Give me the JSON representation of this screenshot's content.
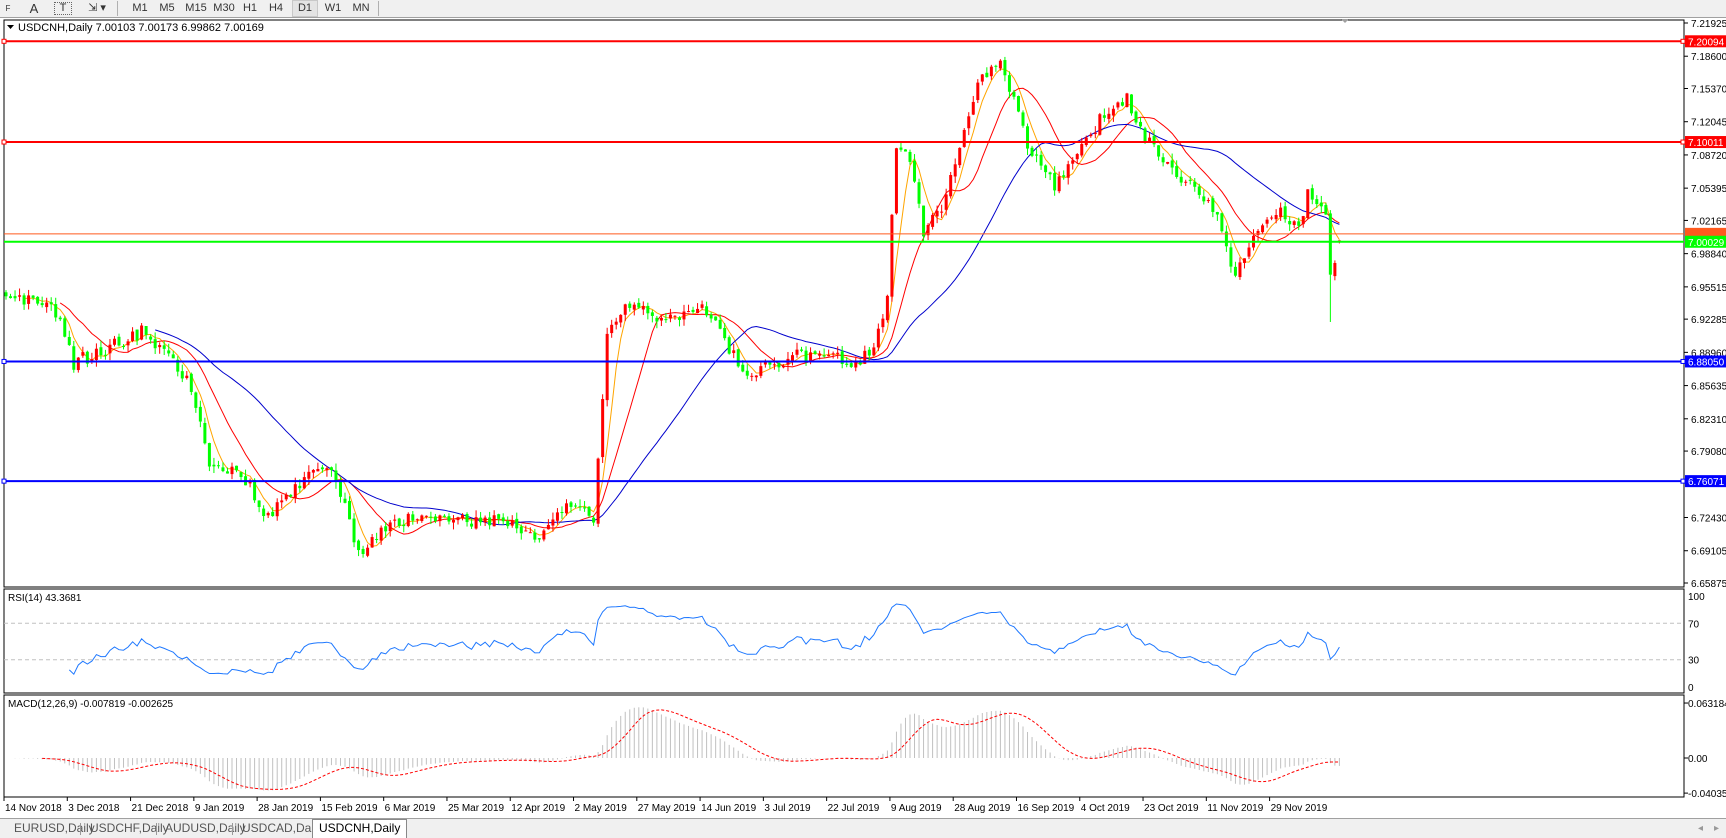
{
  "toolbar": {
    "tools": [
      {
        "label": "F",
        "icon": "period-separator-icon"
      },
      {
        "label": "A",
        "icon": "text-tool-icon"
      },
      {
        "label": "T",
        "icon": "text-label-icon"
      },
      {
        "label": "▾",
        "icon": "arrows-dropdown-icon"
      }
    ],
    "timeframes": [
      "M1",
      "M5",
      "M15",
      "M30",
      "H1",
      "H4",
      "D1",
      "W1",
      "MN"
    ],
    "active_timeframe": "D1"
  },
  "chart": {
    "title": "USDCNH,Daily  7.00103 7.00173 6.99862 7.00169",
    "last_ohlc": {
      "open": 7.00103,
      "high": 7.00173,
      "low": 6.99862,
      "close": 7.00169
    },
    "price_axis_ticks": [
      "7.21925",
      "7.18600",
      "7.15370",
      "7.12045",
      "7.08720",
      "7.05395",
      "7.02165",
      "6.98840",
      "6.95515",
      "6.92285",
      "6.88960",
      "6.85635",
      "6.82310",
      "6.79080",
      "6.72430",
      "6.69105",
      "6.65875"
    ],
    "hlines": [
      {
        "label": "7.20094",
        "value": 7.20094,
        "color": "#ff0000"
      },
      {
        "label": "7.10011",
        "value": 7.10011,
        "color": "#ff0000"
      },
      {
        "label": "6.88050",
        "value": 6.8805,
        "color": "#0000ff"
      },
      {
        "label": "6.76071",
        "value": 6.76071,
        "color": "#0000ff"
      }
    ],
    "ask_line": {
      "value": 7.0082,
      "color": "#ff5a1e"
    },
    "bid_line": {
      "label": "7.00029",
      "value": 7.00029,
      "color": "#00ff00"
    },
    "colors": {
      "bull": "#ff0000",
      "bear": "#00ff00",
      "ma_fast": "#ffa500",
      "ma_mid": "#ff0000",
      "ma_slow": "#0000cc"
    },
    "date_labels": [
      "14 Nov 2018",
      "3 Dec 2018",
      "21 Dec 2018",
      "9 Jan 2019",
      "28 Jan 2019",
      "15 Feb 2019",
      "6 Mar 2019",
      "25 Mar 2019",
      "12 Apr 2019",
      "2 May 2019",
      "27 May 2019",
      "14 Jun 2019",
      "3 Jul 2019",
      "22 Jul 2019",
      "9 Aug 2019",
      "28 Aug 2019",
      "16 Sep 2019",
      "4 Oct 2019",
      "23 Oct 2019",
      "11 Nov 2019",
      "29 Nov 2019"
    ]
  },
  "rsi": {
    "title": "RSI(14) 43.3681",
    "levels": [
      "100",
      "70",
      "30",
      "0"
    ],
    "color": "#1e78ff"
  },
  "macd": {
    "title": "MACD(12,26,9) -0.007819 -0.002625",
    "levels": [
      "0.063184",
      "0.00",
      "-0.040355"
    ],
    "hist_color": "#c0c0c0",
    "signal_color": "#ff0000"
  },
  "chart_data": {
    "type": "candlestick",
    "symbol": "USDCNH",
    "timeframe": "Daily",
    "ylim": [
      6.65875,
      7.21925
    ],
    "bars": 296,
    "close_path": [
      [
        0,
        6.939
      ],
      [
        10,
        6.944
      ],
      [
        15,
        6.879
      ],
      [
        25,
        6.9
      ],
      [
        30,
        6.91
      ],
      [
        40,
        6.866
      ],
      [
        45,
        6.78
      ],
      [
        52,
        6.77
      ],
      [
        58,
        6.725
      ],
      [
        65,
        6.759
      ],
      [
        72,
        6.775
      ],
      [
        78,
        6.691
      ],
      [
        85,
        6.716
      ],
      [
        90,
        6.725
      ],
      [
        100,
        6.72
      ],
      [
        110,
        6.72
      ],
      [
        118,
        6.702
      ],
      [
        125,
        6.738
      ],
      [
        130,
        6.725
      ],
      [
        133,
        6.91
      ],
      [
        138,
        6.939
      ],
      [
        145,
        6.922
      ],
      [
        155,
        6.933
      ],
      [
        160,
        6.89
      ],
      [
        165,
        6.866
      ],
      [
        175,
        6.89
      ],
      [
        188,
        6.879
      ],
      [
        192,
        6.89
      ],
      [
        195,
        6.944
      ],
      [
        197,
        7.099
      ],
      [
        200,
        7.077
      ],
      [
        203,
        7.011
      ],
      [
        208,
        7.044
      ],
      [
        213,
        7.132
      ],
      [
        216,
        7.165
      ],
      [
        220,
        7.181
      ],
      [
        226,
        7.1
      ],
      [
        232,
        7.055
      ],
      [
        238,
        7.1
      ],
      [
        244,
        7.132
      ],
      [
        248,
        7.143
      ],
      [
        250,
        7.12
      ],
      [
        256,
        7.077
      ],
      [
        263,
        7.055
      ],
      [
        268,
        7.022
      ],
      [
        272,
        6.967
      ],
      [
        276,
        7.004
      ],
      [
        282,
        7.033
      ],
      [
        286,
        7.016
      ],
      [
        288,
        7.05
      ],
      [
        292,
        7.033
      ],
      [
        293,
        6.967
      ],
      [
        295,
        7.0017
      ]
    ]
  },
  "tabs": [
    {
      "label": "EURUSD,Daily"
    },
    {
      "label": "USDCHF,Daily"
    },
    {
      "label": "AUDUSD,Daily"
    },
    {
      "label": "USDCAD,Daily"
    },
    {
      "label": "USDCNH,Daily",
      "active": true
    }
  ],
  "scroll": {
    "left": "◂",
    "right": "▸"
  }
}
